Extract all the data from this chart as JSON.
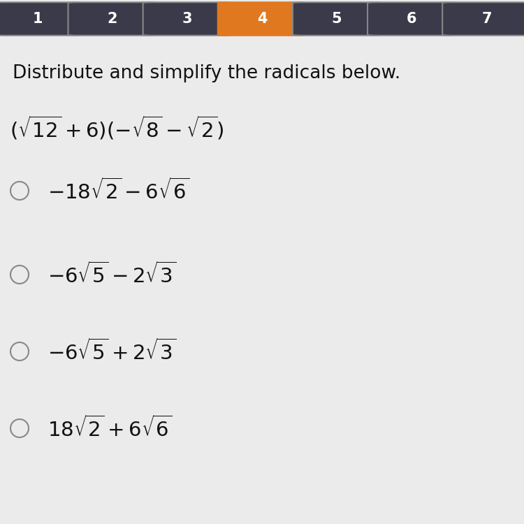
{
  "title": "Distribute and simplify the radicals below.",
  "tab_labels": [
    "1",
    "2",
    "3",
    "4",
    "5",
    "6",
    "7"
  ],
  "active_tab": 3,
  "tab_bg": "#2b2b3b",
  "active_tab_color": "#e07820",
  "inactive_box_color": "#3a3a4a",
  "inactive_border_color": "#888888",
  "active_border_color": "#e07820",
  "tab_text_color": "#ffffff",
  "body_bg": "#ebebeb",
  "title_fontsize": 19,
  "question_fontsize": 20,
  "option_fontsize": 19,
  "circle_color": "#888888",
  "text_color": "#111111"
}
